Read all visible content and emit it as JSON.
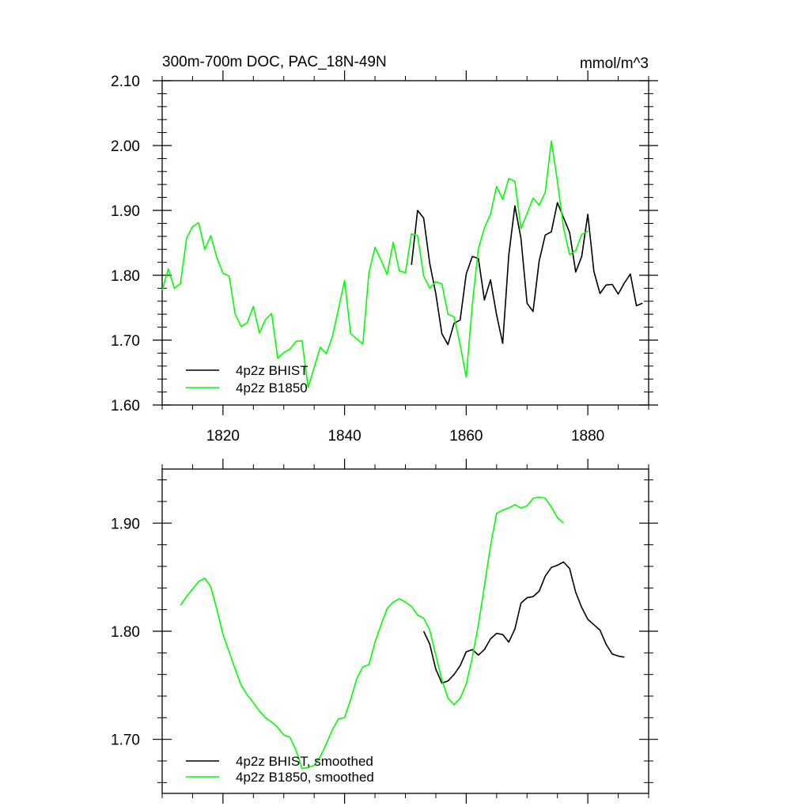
{
  "chart_data": [
    {
      "type": "line",
      "title": "300m-700m DOC, PAC_18N-49N",
      "units": "mmol/m^3",
      "xlim": [
        1810,
        1890
      ],
      "ylim": [
        1.6,
        2.1
      ],
      "xticks": [
        1820,
        1840,
        1860,
        1880
      ],
      "xtick_labels": [
        "1820",
        "1840",
        "1860",
        "1880"
      ],
      "yticks": [
        1.6,
        1.7,
        1.8,
        1.9,
        2.0,
        2.1
      ],
      "ytick_labels": [
        "1.60",
        "1.70",
        "1.80",
        "1.90",
        "2.00",
        "2.10"
      ],
      "legend_position": "bottom-left",
      "series": [
        {
          "name": "4p2z BHIST",
          "color": "#000000",
          "x": [
            1851,
            1852,
            1853,
            1854,
            1855,
            1856,
            1857,
            1858,
            1859,
            1860,
            1861,
            1862,
            1863,
            1864,
            1865,
            1866,
            1867,
            1868,
            1869,
            1870,
            1871,
            1872,
            1873,
            1874,
            1875,
            1876,
            1877,
            1878,
            1879,
            1880,
            1881,
            1882,
            1883,
            1884,
            1885,
            1886,
            1887,
            1888,
            1889
          ],
          "y": [
            1.816,
            1.9,
            1.888,
            1.818,
            1.772,
            1.71,
            1.693,
            1.726,
            1.731,
            1.802,
            1.829,
            1.826,
            1.762,
            1.793,
            1.739,
            1.695,
            1.831,
            1.907,
            1.857,
            1.757,
            1.744,
            1.822,
            1.862,
            1.867,
            1.912,
            1.889,
            1.866,
            1.805,
            1.829,
            1.894,
            1.806,
            1.772,
            1.785,
            1.786,
            1.771,
            1.788,
            1.802,
            1.753,
            1.757
          ]
        },
        {
          "name": "4p2z B1850",
          "color": "#00ff00",
          "x": [
            1810,
            1811,
            1812,
            1813,
            1814,
            1815,
            1816,
            1817,
            1818,
            1819,
            1820,
            1821,
            1822,
            1823,
            1824,
            1825,
            1826,
            1827,
            1828,
            1829,
            1830,
            1831,
            1832,
            1833,
            1834,
            1835,
            1836,
            1837,
            1838,
            1839,
            1840,
            1841,
            1842,
            1843,
            1844,
            1845,
            1846,
            1847,
            1848,
            1849,
            1850,
            1851,
            1852,
            1853,
            1854,
            1855,
            1856,
            1857,
            1858,
            1859,
            1860,
            1861,
            1862,
            1863,
            1864,
            1865,
            1866,
            1867,
            1868,
            1869,
            1870,
            1871,
            1872,
            1873,
            1874,
            1875,
            1876,
            1877,
            1878,
            1879,
            1880
          ],
          "y": [
            1.777,
            1.81,
            1.78,
            1.787,
            1.857,
            1.875,
            1.881,
            1.84,
            1.861,
            1.827,
            1.803,
            1.799,
            1.74,
            1.721,
            1.727,
            1.752,
            1.711,
            1.732,
            1.741,
            1.672,
            1.681,
            1.686,
            1.698,
            1.699,
            1.627,
            1.658,
            1.689,
            1.679,
            1.706,
            1.748,
            1.792,
            1.71,
            1.702,
            1.694,
            1.804,
            1.843,
            1.823,
            1.801,
            1.851,
            1.807,
            1.804,
            1.864,
            1.861,
            1.799,
            1.78,
            1.79,
            1.787,
            1.74,
            1.736,
            1.693,
            1.643,
            1.755,
            1.841,
            1.873,
            1.894,
            1.937,
            1.917,
            1.949,
            1.945,
            1.872,
            1.895,
            1.919,
            1.908,
            1.928,
            2.007,
            1.945,
            1.873,
            1.832,
            1.838,
            1.863,
            1.868
          ]
        }
      ]
    },
    {
      "type": "line",
      "title": "",
      "xlim": [
        1810,
        1890
      ],
      "ylim": [
        1.65,
        1.95
      ],
      "xticks": [
        1820,
        1840,
        1860,
        1880
      ],
      "xtick_labels": [],
      "yticks": [
        1.7,
        1.8,
        1.9
      ],
      "ytick_labels": [
        "1.70",
        "1.80",
        "1.90"
      ],
      "legend_position": "bottom-left",
      "series": [
        {
          "name": "4p2z BHIST, smoothed",
          "color": "#000000",
          "x": [
            1853,
            1854,
            1855,
            1856,
            1857,
            1858,
            1859,
            1860,
            1861,
            1862,
            1863,
            1864,
            1865,
            1866,
            1867,
            1868,
            1869,
            1870,
            1871,
            1872,
            1873,
            1874,
            1875,
            1876,
            1877,
            1878,
            1879,
            1880,
            1881,
            1882,
            1883,
            1884,
            1885,
            1886
          ],
          "y": [
            1.8,
            1.788,
            1.765,
            1.752,
            1.754,
            1.76,
            1.768,
            1.781,
            1.783,
            1.778,
            1.783,
            1.793,
            1.798,
            1.797,
            1.79,
            1.802,
            1.826,
            1.831,
            1.832,
            1.837,
            1.851,
            1.859,
            1.861,
            1.864,
            1.858,
            1.836,
            1.822,
            1.811,
            1.806,
            1.801,
            1.788,
            1.779,
            1.777,
            1.776
          ]
        },
        {
          "name": "4p2z B1850, smoothed",
          "color": "#00ff00",
          "x": [
            1813,
            1814,
            1815,
            1816,
            1817,
            1818,
            1819,
            1820,
            1821,
            1822,
            1823,
            1824,
            1825,
            1826,
            1827,
            1828,
            1829,
            1830,
            1831,
            1832,
            1833,
            1834,
            1835,
            1836,
            1837,
            1838,
            1839,
            1840,
            1841,
            1842,
            1843,
            1844,
            1845,
            1846,
            1847,
            1848,
            1849,
            1850,
            1851,
            1852,
            1853,
            1854,
            1855,
            1856,
            1857,
            1858,
            1859,
            1860,
            1861,
            1862,
            1863,
            1864,
            1865,
            1866,
            1867,
            1868,
            1869,
            1870,
            1871,
            1872,
            1873,
            1874,
            1875,
            1876
          ],
          "y": [
            1.824,
            1.832,
            1.839,
            1.846,
            1.849,
            1.841,
            1.82,
            1.797,
            1.781,
            1.765,
            1.75,
            1.741,
            1.734,
            1.726,
            1.72,
            1.716,
            1.711,
            1.704,
            1.702,
            1.69,
            1.673,
            1.674,
            1.676,
            1.684,
            1.696,
            1.709,
            1.719,
            1.72,
            1.737,
            1.756,
            1.767,
            1.769,
            1.79,
            1.806,
            1.821,
            1.827,
            1.83,
            1.827,
            1.823,
            1.815,
            1.812,
            1.801,
            1.778,
            1.755,
            1.738,
            1.732,
            1.738,
            1.751,
            1.776,
            1.806,
            1.842,
            1.879,
            1.909,
            1.912,
            1.914,
            1.917,
            1.914,
            1.916,
            1.923,
            1.924,
            1.923,
            1.915,
            1.905,
            1.9
          ]
        }
      ]
    }
  ]
}
